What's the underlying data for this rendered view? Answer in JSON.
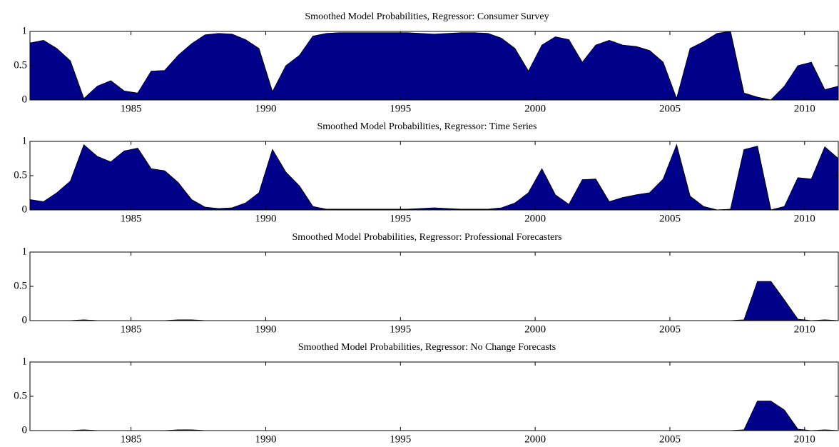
{
  "chart_data": [
    {
      "type": "area",
      "title": "Smoothed Model Probabilities, Regressor: Consumer Survey",
      "x": [
        1981.25,
        1981.75,
        1982.25,
        1982.75,
        1983.25,
        1983.75,
        1984.25,
        1984.75,
        1985.25,
        1985.75,
        1986.25,
        1986.75,
        1987.25,
        1987.75,
        1988.25,
        1988.75,
        1989.25,
        1989.75,
        1990.25,
        1990.75,
        1991.25,
        1991.75,
        1992.25,
        1992.75,
        1993.25,
        1993.75,
        1994.25,
        1994.75,
        1995.25,
        1995.75,
        1996.25,
        1996.75,
        1997.25,
        1997.75,
        1998.25,
        1998.75,
        1999.25,
        1999.75,
        2000.25,
        2000.75,
        2001.25,
        2001.75,
        2002.25,
        2002.75,
        2003.25,
        2003.75,
        2004.25,
        2004.75,
        2005.25,
        2005.75,
        2006.25,
        2006.75,
        2007.25,
        2007.75,
        2008.25,
        2008.75,
        2009.25,
        2009.75,
        2010.25,
        2010.75,
        2011.25
      ],
      "values": [
        0.83,
        0.87,
        0.75,
        0.57,
        0.02,
        0.2,
        0.28,
        0.13,
        0.1,
        0.42,
        0.43,
        0.65,
        0.82,
        0.95,
        0.97,
        0.96,
        0.88,
        0.75,
        0.12,
        0.5,
        0.65,
        0.93,
        0.97,
        0.98,
        0.98,
        0.98,
        0.98,
        0.98,
        0.98,
        0.97,
        0.96,
        0.97,
        0.98,
        0.98,
        0.97,
        0.9,
        0.75,
        0.42,
        0.8,
        0.92,
        0.88,
        0.55,
        0.8,
        0.87,
        0.8,
        0.78,
        0.72,
        0.55,
        0.02,
        0.75,
        0.85,
        0.97,
        1,
        0.1,
        0.04,
        0,
        0.2,
        0.5,
        0.55,
        0.15,
        0.2
      ],
      "color": "#00008b",
      "xlim": [
        1981.25,
        2011.25
      ],
      "ylim": [
        0,
        1
      ],
      "xticks": [
        1985,
        1990,
        1995,
        2000,
        2005,
        2010
      ],
      "yticks": [
        0,
        0.5,
        1
      ]
    },
    {
      "type": "area",
      "title": "Smoothed Model Probabilities, Regressor: Time Series",
      "x": [
        1981.25,
        1981.75,
        1982.25,
        1982.75,
        1983.25,
        1983.75,
        1984.25,
        1984.75,
        1985.25,
        1985.75,
        1986.25,
        1986.75,
        1987.25,
        1987.75,
        1988.25,
        1988.75,
        1989.25,
        1989.75,
        1990.25,
        1990.75,
        1991.25,
        1991.75,
        1992.25,
        1992.75,
        1993.25,
        1993.75,
        1994.25,
        1994.75,
        1995.25,
        1995.75,
        1996.25,
        1996.75,
        1997.25,
        1997.75,
        1998.25,
        1998.75,
        1999.25,
        1999.75,
        2000.25,
        2000.75,
        2001.25,
        2001.75,
        2002.25,
        2002.75,
        2003.25,
        2003.75,
        2004.25,
        2004.75,
        2005.25,
        2005.75,
        2006.25,
        2006.75,
        2007.25,
        2007.75,
        2008.25,
        2008.75,
        2009.25,
        2009.75,
        2010.25,
        2010.75,
        2011.25
      ],
      "values": [
        0.15,
        0.12,
        0.25,
        0.42,
        0.95,
        0.78,
        0.7,
        0.86,
        0.9,
        0.6,
        0.57,
        0.4,
        0.15,
        0.04,
        0.02,
        0.03,
        0.1,
        0.25,
        0.88,
        0.55,
        0.35,
        0.05,
        0.01,
        0.01,
        0.01,
        0.01,
        0.01,
        0.01,
        0.01,
        0.02,
        0.03,
        0.02,
        0.01,
        0.01,
        0.01,
        0.03,
        0.1,
        0.25,
        0.6,
        0.22,
        0.08,
        0.44,
        0.45,
        0.12,
        0.18,
        0.22,
        0.25,
        0.45,
        0.95,
        0.2,
        0.05,
        0,
        0.01,
        0.88,
        0.93,
        0,
        0.05,
        0.47,
        0.45,
        0.92,
        0.75
      ],
      "color": "#00008b",
      "xlim": [
        1981.25,
        2011.25
      ],
      "ylim": [
        0,
        1
      ],
      "xticks": [
        1985,
        1990,
        1995,
        2000,
        2005,
        2010
      ],
      "yticks": [
        0,
        0.5,
        1
      ]
    },
    {
      "type": "area",
      "title": "Smoothed Model Probabilities, Regressor: Professional Forecasters",
      "x": [
        1981.25,
        1981.75,
        1982.25,
        1982.75,
        1983.25,
        1983.75,
        1984.25,
        1984.75,
        1985.25,
        1985.75,
        1986.25,
        1986.75,
        1987.25,
        1987.75,
        1988.25,
        1988.75,
        1989.25,
        1989.75,
        1990.25,
        1990.75,
        1991.25,
        1991.75,
        1992.25,
        1992.75,
        1993.25,
        1993.75,
        1994.25,
        1994.75,
        1995.25,
        1995.75,
        1996.25,
        1996.75,
        1997.25,
        1997.75,
        1998.25,
        1998.75,
        1999.25,
        1999.75,
        2000.25,
        2000.75,
        2001.25,
        2001.75,
        2002.25,
        2002.75,
        2003.25,
        2003.75,
        2004.25,
        2004.75,
        2005.25,
        2005.75,
        2006.25,
        2006.75,
        2007.25,
        2007.75,
        2008.25,
        2008.75,
        2009.25,
        2009.75,
        2010.25,
        2010.75,
        2011.25
      ],
      "values": [
        0,
        0,
        0,
        0,
        0.01,
        0,
        0,
        0,
        0,
        0,
        0,
        0.01,
        0.01,
        0,
        0,
        0,
        0,
        0,
        0,
        0,
        0,
        0,
        0,
        0,
        0,
        0,
        0,
        0,
        0,
        0,
        0,
        0,
        0,
        0,
        0,
        0,
        0,
        0,
        0,
        0,
        0,
        0,
        0,
        0,
        0,
        0,
        0,
        0,
        0,
        0,
        0,
        0,
        0,
        0.01,
        0.57,
        0.57,
        0.3,
        0.02,
        0,
        0.01,
        0
      ],
      "color": "#00008b",
      "xlim": [
        1981.25,
        2011.25
      ],
      "ylim": [
        0,
        1
      ],
      "xticks": [
        1985,
        1990,
        1995,
        2000,
        2005,
        2010
      ],
      "yticks": [
        0,
        0.5,
        1
      ]
    },
    {
      "type": "area",
      "title": "Smoothed Model Probabilities, Regressor: No Change Forecasts",
      "x": [
        1981.25,
        1981.75,
        1982.25,
        1982.75,
        1983.25,
        1983.75,
        1984.25,
        1984.75,
        1985.25,
        1985.75,
        1986.25,
        1986.75,
        1987.25,
        1987.75,
        1988.25,
        1988.75,
        1989.25,
        1989.75,
        1990.25,
        1990.75,
        1991.25,
        1991.75,
        1992.25,
        1992.75,
        1993.25,
        1993.75,
        1994.25,
        1994.75,
        1995.25,
        1995.75,
        1996.25,
        1996.75,
        1997.25,
        1997.75,
        1998.25,
        1998.75,
        1999.25,
        1999.75,
        2000.25,
        2000.75,
        2001.25,
        2001.75,
        2002.25,
        2002.75,
        2003.25,
        2003.75,
        2004.25,
        2004.75,
        2005.25,
        2005.75,
        2006.25,
        2006.75,
        2007.25,
        2007.75,
        2008.25,
        2008.75,
        2009.25,
        2009.75,
        2010.25,
        2010.75,
        2011.25
      ],
      "values": [
        0,
        0,
        0,
        0,
        0.01,
        0,
        0,
        0,
        0,
        0,
        0,
        0.01,
        0.01,
        0,
        0,
        0,
        0,
        0,
        0,
        0,
        0,
        0,
        0,
        0,
        0,
        0,
        0,
        0,
        0,
        0,
        0,
        0,
        0,
        0,
        0,
        0,
        0,
        0,
        0,
        0,
        0,
        0,
        0,
        0,
        0,
        0,
        0,
        0,
        0,
        0,
        0,
        0,
        0,
        0.01,
        0.43,
        0.43,
        0.3,
        0.02,
        0,
        0.01,
        0
      ],
      "color": "#00008b",
      "xlim": [
        1981.25,
        2011.25
      ],
      "ylim": [
        0,
        1
      ],
      "xticks": [
        1985,
        1990,
        1995,
        2000,
        2005,
        2010
      ],
      "yticks": [
        0,
        0.5,
        1
      ]
    }
  ]
}
